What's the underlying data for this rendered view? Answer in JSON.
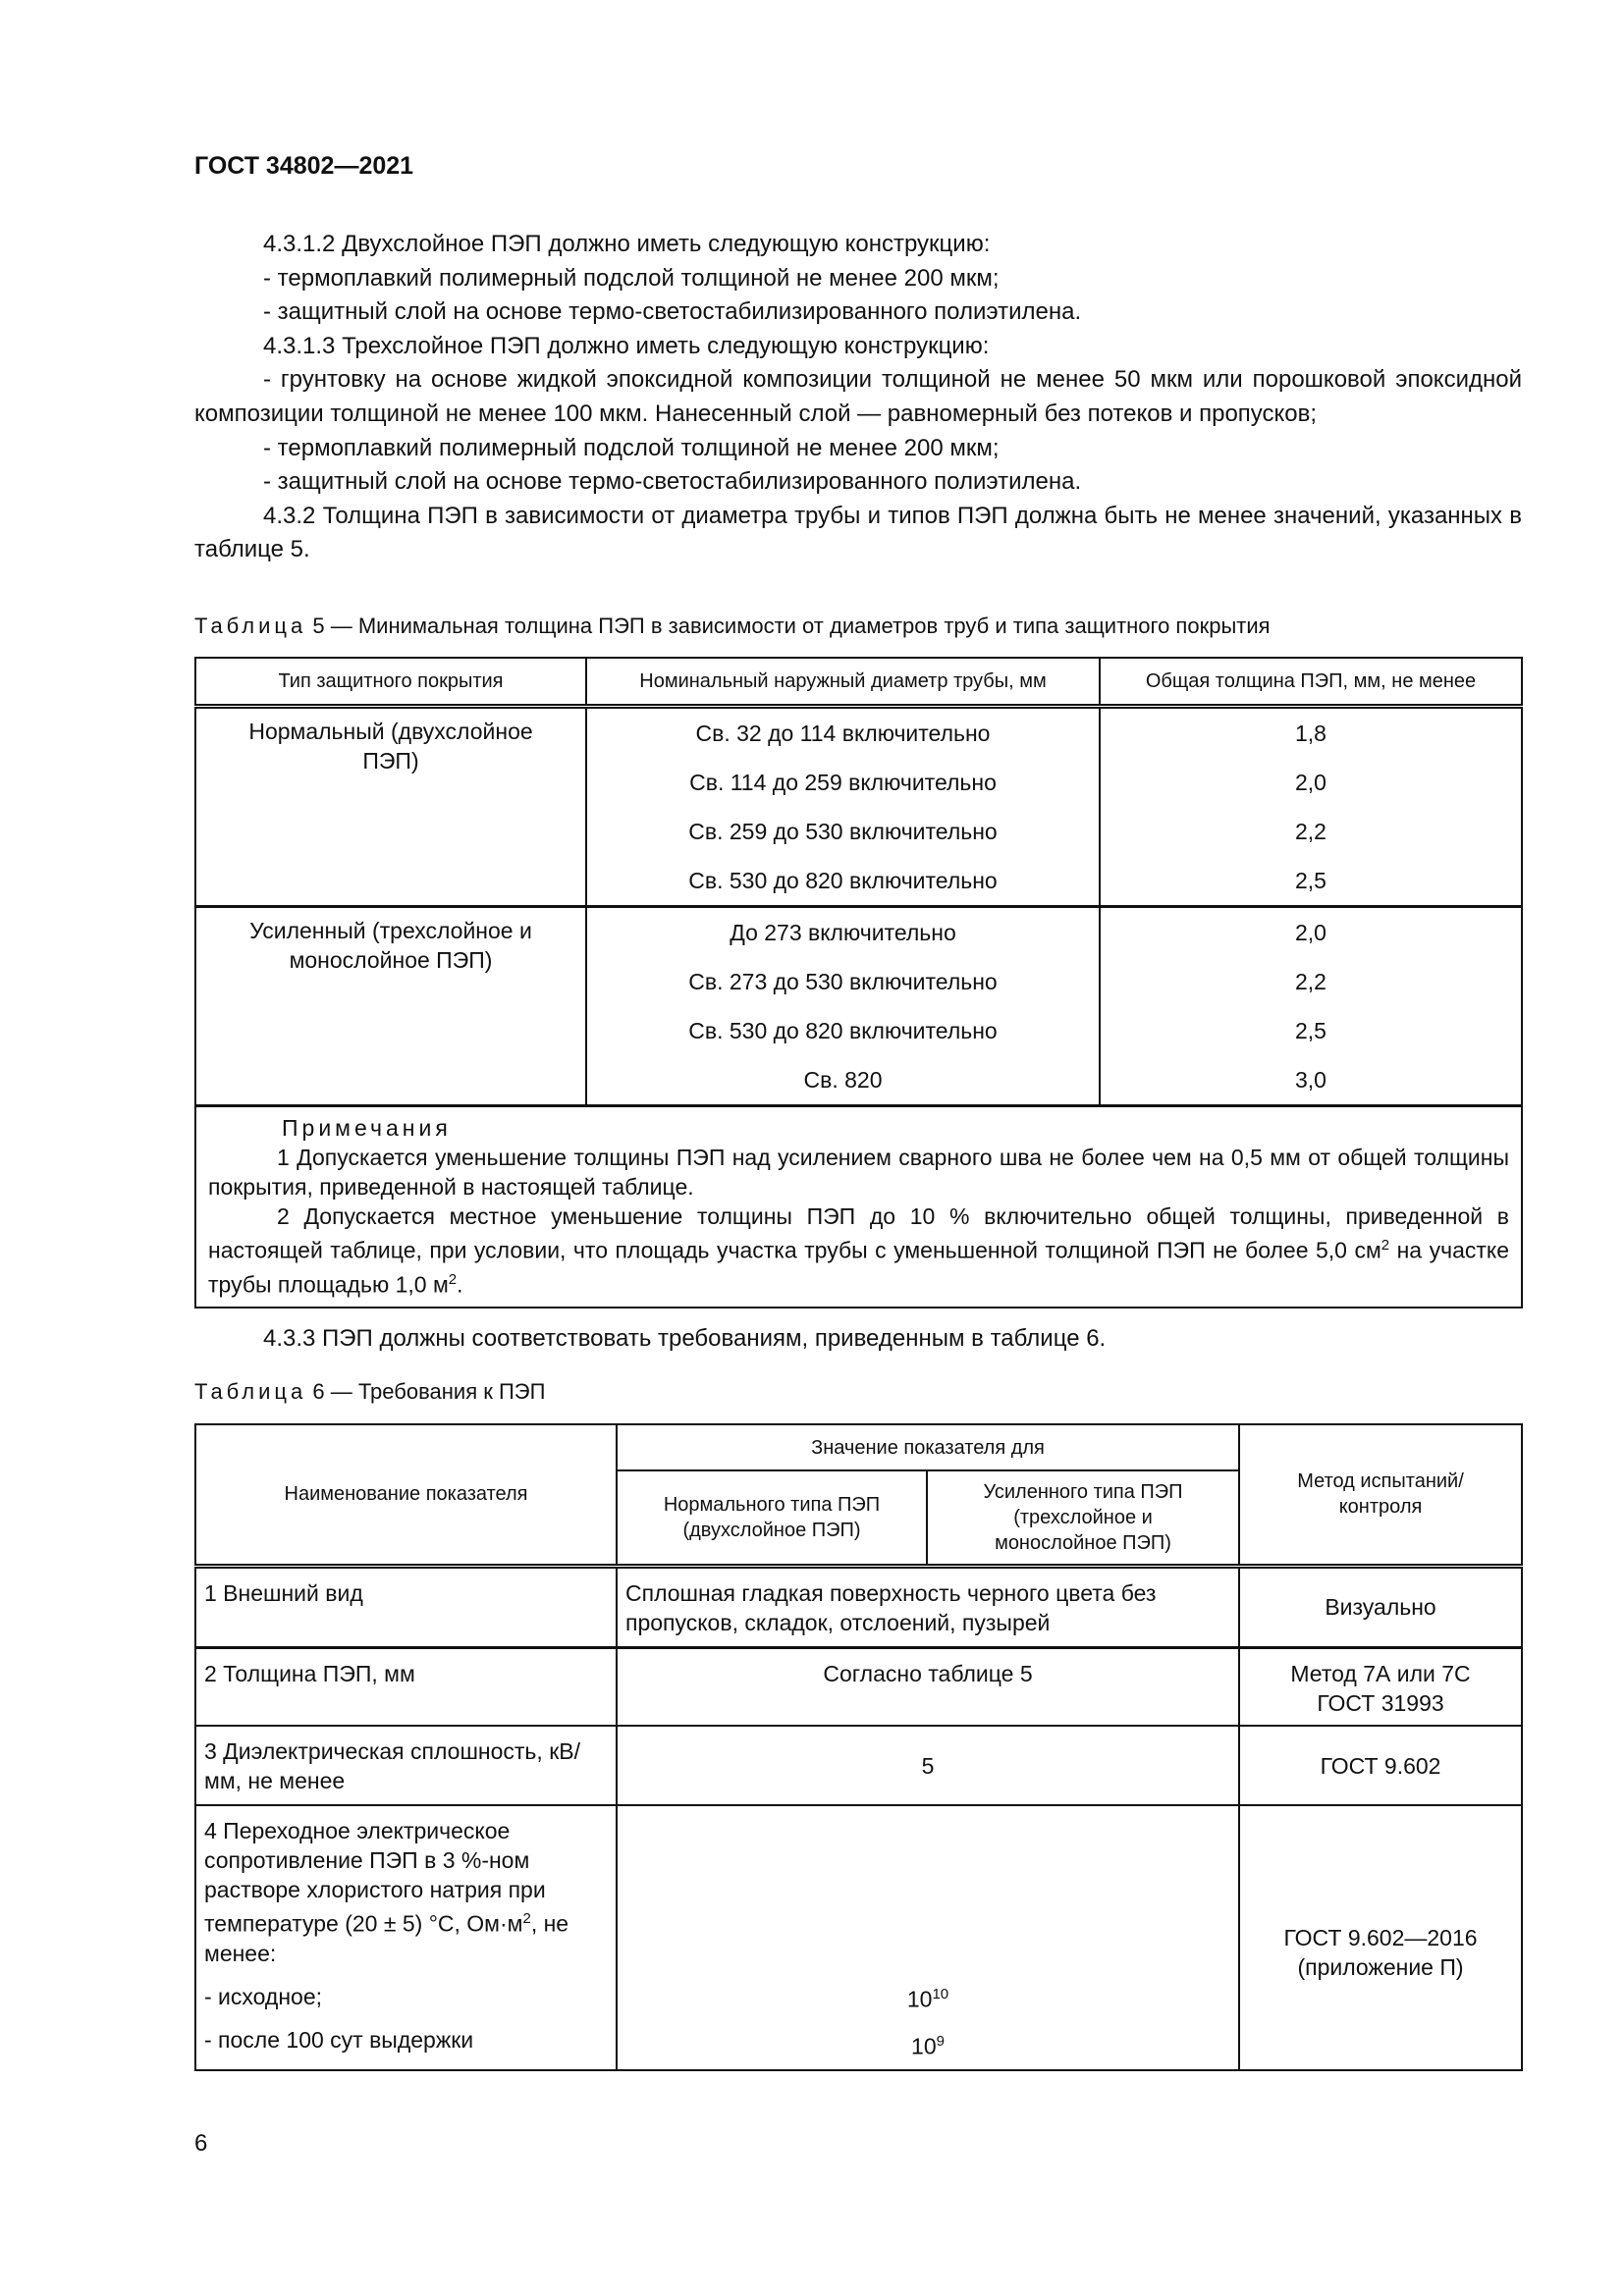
{
  "header": {
    "doc_id": "ГОСТ 34802—2021"
  },
  "paragraphs": [
    "4.3.1.2 Двухслойное ПЭП должно иметь следующую конструкцию:",
    "- термоплавкий полимерный подслой толщиной не менее 200 мкм;",
    "- защитный слой на основе термо-светостабилизированного полиэтилена.",
    "4.3.1.3 Трехслойное ПЭП должно иметь следующую конструкцию:",
    "- грунтовку на основе жидкой эпоксидной композиции толщиной не менее 50 мкм или порошковой эпоксидной композиции толщиной не менее 100 мкм. Нанесенный слой — равномерный без потеков и пропусков;",
    "- термоплавкий полимерный подслой толщиной не менее 200 мкм;",
    "- защитный слой на основе термо-светостабилизированного полиэтилена.",
    "4.3.2 Толщина ПЭП в зависимости от диаметра трубы и типов ПЭП должна быть не менее значений, указанных в таблице 5."
  ],
  "table5": {
    "caption_prefix": "Таблица",
    "caption_text": " 5 — Минимальная толщина ПЭП в зависимости от диаметров труб и типа защитного покрытия",
    "headers": [
      "Тип защитного покрытия",
      "Номинальный наружный диаметр трубы, мм",
      "Общая толщина ПЭП, мм, не менее"
    ],
    "groups": [
      {
        "type": "Нормальный (двухслойное ПЭП)",
        "diameters": [
          "Св. 32  до 114 включительно",
          "Св. 114 до 259 включительно",
          "Св. 259 до 530 включительно",
          "Св. 530 до 820 включительно"
        ],
        "thickness": [
          "1,8",
          "2,0",
          "2,2",
          "2,5"
        ]
      },
      {
        "type": "Усиленный (трехслойное и монослойное ПЭП)",
        "diameters": [
          "До 273 включительно",
          "Св. 273 до 530 включительно",
          "Св. 530 до 820 включительно",
          "Св. 820"
        ],
        "thickness": [
          "2,0",
          "2,2",
          "2,5",
          "3,0"
        ]
      }
    ],
    "notes_title": "Примечания",
    "note1": "1 Допускается уменьшение толщины ПЭП над усилением сварного шва не более чем на 0,5 мм от общей толщины покрытия, приведенной в настоящей таблице.",
    "note2_a": "2 Допускается местное уменьшение толщины ПЭП до 10 % включительно общей толщины, приведенной в настоящей таблице, при условии, что площадь участка трубы с уменьшенной толщиной ПЭП не более 5,0 см",
    "note2_b": " на участке трубы площадью 1,0 м",
    "note2_c": ".",
    "sup2": "2"
  },
  "para433": "4.3.3 ПЭП должны соответствовать требованиям, приведенным в таблице 6.",
  "table6": {
    "caption_prefix": "Таблица",
    "caption_text": " 6 — Требования к ПЭП",
    "h_name": "Наименование показателя",
    "h_value": "Значение показателя для",
    "h_normal": "Нормального типа ПЭП (двухслойное ПЭП)",
    "h_reinforced": "Усиленного типа ПЭП (трехслойное и монослойное ПЭП)",
    "h_method": "Метод испытаний/ контроля",
    "rows": [
      {
        "name": "1 Внешний вид",
        "value": "Сплошная гладкая поверхность черного цвета без пропусков, складок, отслоений, пузырей",
        "method": "Визуально"
      },
      {
        "name": "2 Толщина ПЭП, мм",
        "value": "Согласно таблице 5",
        "method": "Метод 7А или 7С ГОСТ 31993"
      },
      {
        "name": "3 Диэлектрическая сплошность, кВ/мм, не менее",
        "value": "5",
        "method": "ГОСТ 9.602"
      }
    ],
    "row4": {
      "name_a": "4 Переходное электрическое сопротивление ПЭП в 3 %-ном растворе хлористого натрия при температуре (20 ± 5) °С, Ом·м",
      "name_sup": "2",
      "name_b": ", не менее:",
      "sub1": "- исходное;",
      "sub2": "- после 100 сут выдержки",
      "val_base": "10",
      "val1_exp": "10",
      "val2_exp": "9",
      "method": "ГОСТ 9.602—2016 (приложение П)"
    }
  },
  "page_number": "6"
}
